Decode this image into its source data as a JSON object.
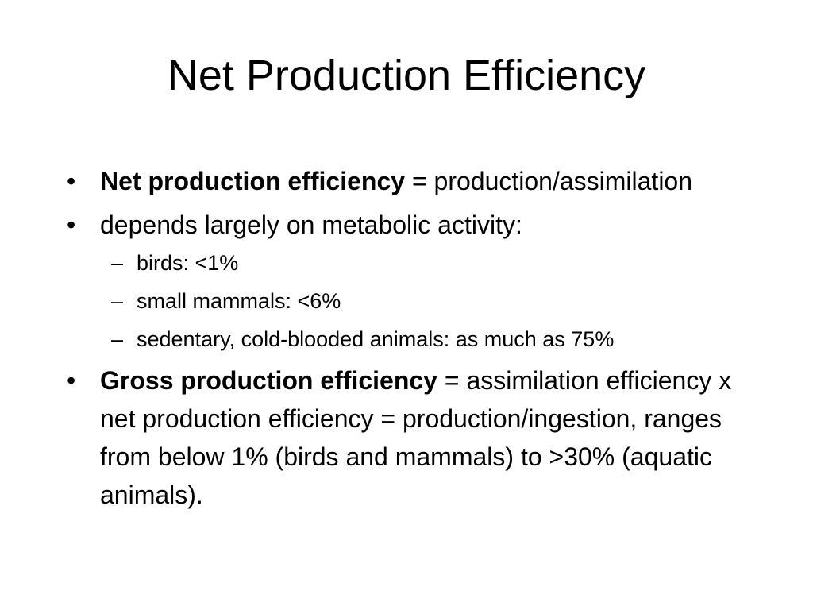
{
  "slide": {
    "title": "Net Production Efficiency",
    "bullets": [
      {
        "term": "Net production efficiency",
        "text": " = production/assimilation"
      },
      {
        "text": "depends largely on metabolic activity:",
        "subitems": [
          "birds: <1%",
          "small mammals: <6%",
          "sedentary, cold-blooded animals: as much as 75%"
        ]
      },
      {
        "term": "Gross production efficiency",
        "text": " = assimilation efficiency x net production efficiency = production/ingestion, ranges from below 1% (birds and mammals) to >30% (aquatic animals)."
      }
    ],
    "bullet_glyph": "•",
    "sub_glyph": "–"
  }
}
